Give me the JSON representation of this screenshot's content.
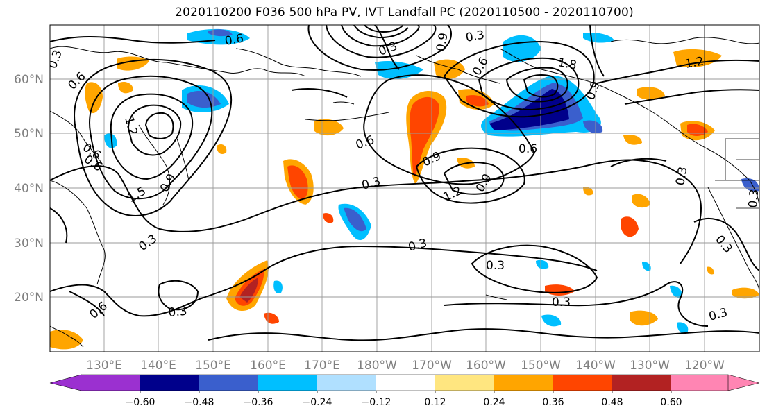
{
  "title": "2020110200 F036 500 hPa PV, IVT Landfall PC (2020110500 - 2020110700)",
  "map": {
    "lat_labels": [
      "60°N",
      "50°N",
      "40°N",
      "30°N",
      "20°N"
    ],
    "lon_labels": [
      "130°E",
      "140°E",
      "150°E",
      "160°E",
      "170°E",
      "180°W",
      "170°W",
      "160°W",
      "150°W",
      "140°W",
      "130°W",
      "120°W"
    ],
    "contour_labels": [
      "0.3",
      "0.6",
      "0.6",
      "0.6",
      "1.2",
      "1.5",
      "0.9",
      "1.8",
      "0.9",
      "0.6",
      "0.6",
      "0.9",
      "1.2",
      "0.9",
      "0.3",
      "0.3",
      "0.3",
      "0.3",
      "0.3",
      "0.3",
      "0.3",
      "0.6",
      "0.3",
      "0.6",
      "1.2",
      "0.3",
      "0.3",
      "0.9",
      "0.6",
      "0.3",
      "0.3"
    ]
  },
  "colorbar": {
    "ticks": [
      "−0.60",
      "−0.48",
      "−0.36",
      "−0.24",
      "−0.12",
      "0.12",
      "0.24",
      "0.36",
      "0.48",
      "0.60"
    ],
    "colors": [
      "#9b30d0",
      "#00008b",
      "#3a5fcd",
      "#00bfff",
      "#b0e0ff",
      "#ffffff",
      "#ffe680",
      "#ffa500",
      "#ff4500",
      "#b22222",
      "#ff85b3"
    ]
  }
}
